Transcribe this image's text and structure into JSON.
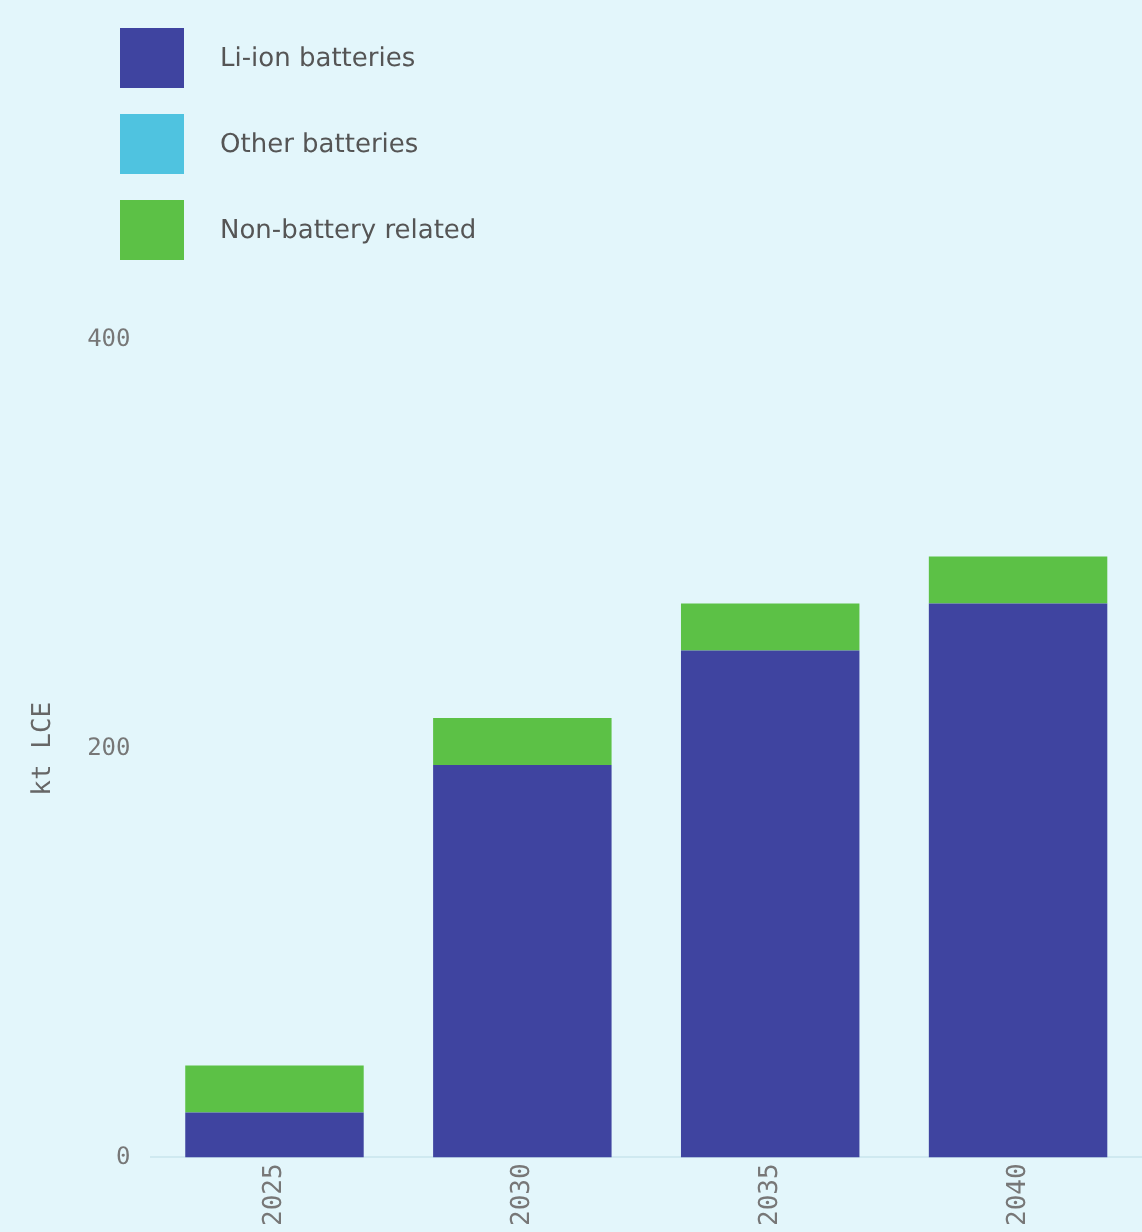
{
  "chart_data": {
    "type": "bar",
    "stacked": true,
    "ylabel": "kt LCE",
    "categories": [
      "2025",
      "2030",
      "2035",
      "2040"
    ],
    "series": [
      {
        "name": "Li-ion batteries",
        "color": "#3f44a0",
        "values": [
          22,
          192,
          248,
          271
        ]
      },
      {
        "name": "Other batteries",
        "color": "#4fc3e0",
        "values": [
          0,
          0,
          0,
          0
        ]
      },
      {
        "name": "Non-battery related",
        "color": "#5cc146",
        "values": [
          23,
          23,
          23,
          23
        ]
      }
    ],
    "ylim": [
      0,
      400
    ],
    "yticks": [
      0,
      200,
      400
    ],
    "grid": false,
    "legend": "top left"
  }
}
